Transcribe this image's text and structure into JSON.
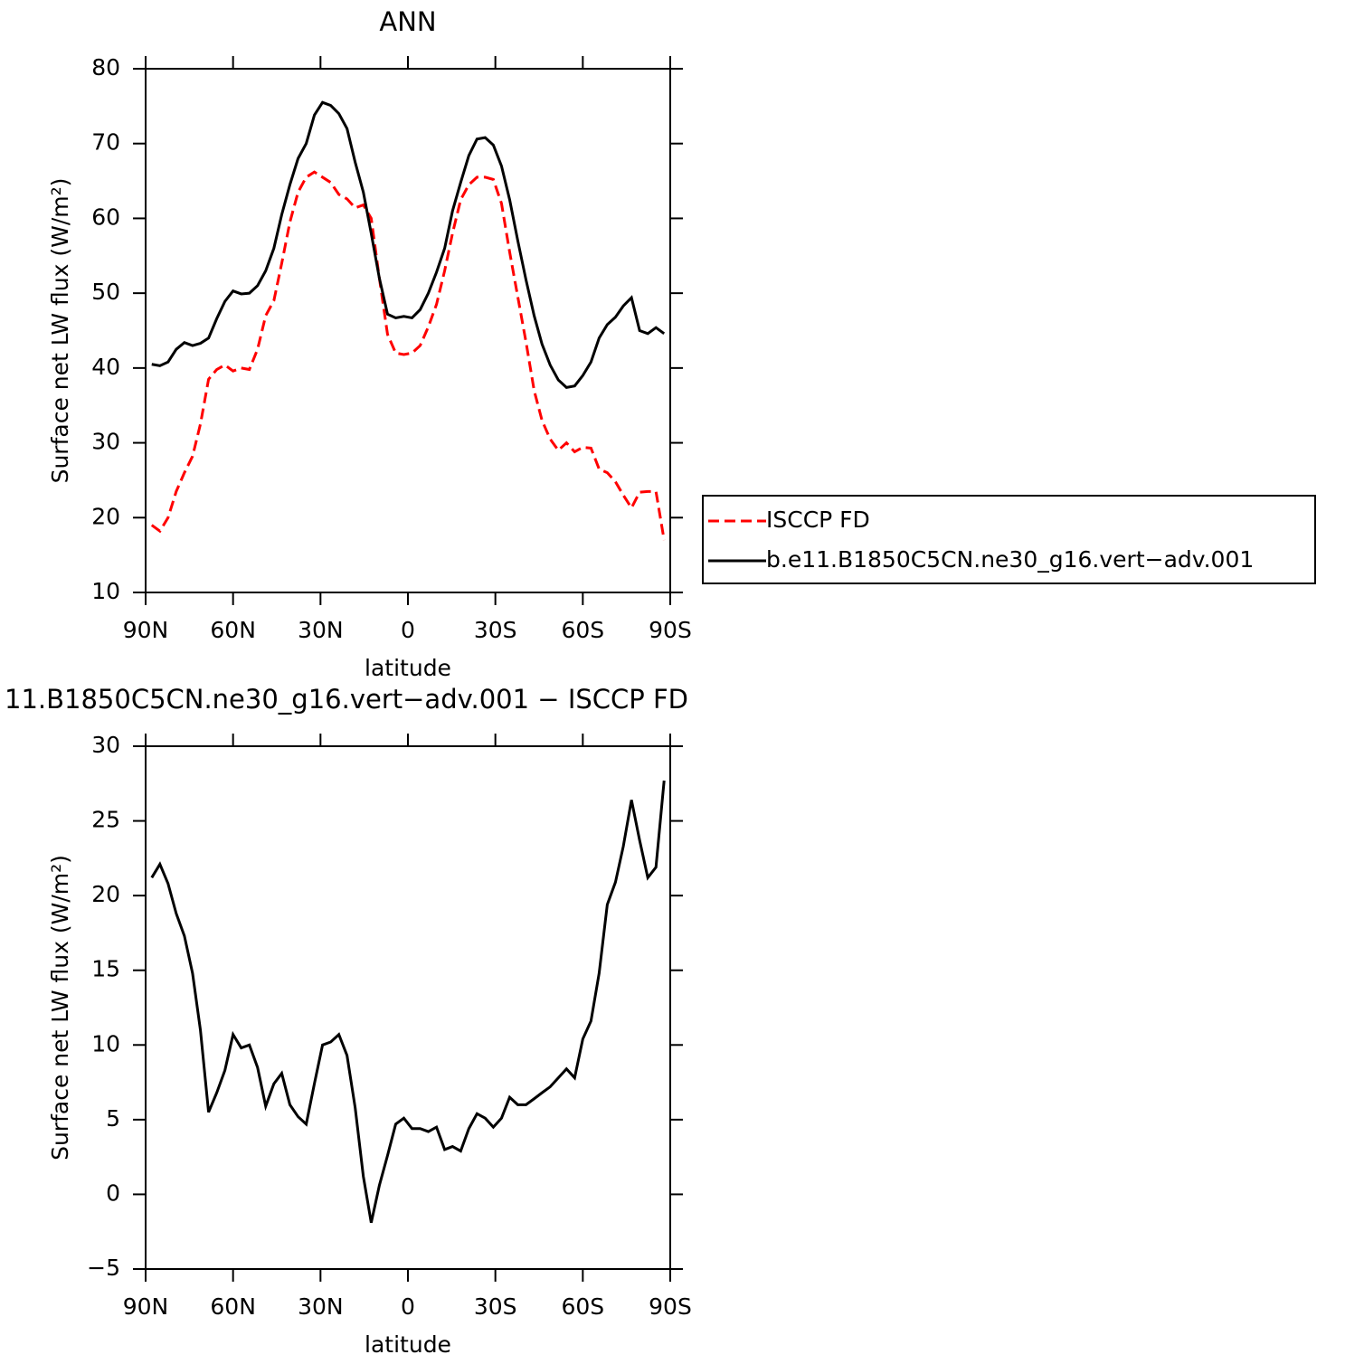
{
  "chart_data": [
    {
      "type": "line",
      "title": "ANN",
      "xlabel": "latitude",
      "ylabel": "Surface net LW flux (W/m²)",
      "xlim": [
        90,
        -90
      ],
      "xticks": [
        {
          "value": 90,
          "label": "90N"
        },
        {
          "value": 60,
          "label": "60N"
        },
        {
          "value": 30,
          "label": "30N"
        },
        0,
        {
          "value": -30,
          "label": "30S"
        },
        {
          "value": -60,
          "label": "60S"
        },
        {
          "value": -90,
          "label": "90S"
        }
      ],
      "ylim": [
        10,
        80
      ],
      "yticks": [
        10,
        20,
        30,
        40,
        50,
        60,
        70,
        80
      ],
      "legend": "right",
      "x": [
        87.9,
        85.1,
        82.3,
        79.5,
        76.7,
        73.9,
        71.2,
        68.4,
        65.6,
        62.8,
        60.0,
        57.2,
        54.4,
        51.6,
        48.8,
        46.0,
        43.3,
        40.5,
        37.7,
        34.9,
        32.1,
        29.3,
        26.5,
        23.7,
        20.9,
        18.1,
        15.3,
        12.6,
        9.8,
        7.0,
        4.2,
        1.4,
        -1.4,
        -4.2,
        -7.0,
        -9.8,
        -12.6,
        -15.3,
        -18.1,
        -20.9,
        -23.7,
        -26.5,
        -29.3,
        -32.1,
        -34.9,
        -37.7,
        -40.5,
        -43.3,
        -46.0,
        -48.8,
        -51.6,
        -54.4,
        -57.2,
        -60.0,
        -62.8,
        -65.6,
        -68.4,
        -71.2,
        -73.9,
        -76.7,
        -79.5,
        -82.3,
        -85.1,
        -87.9
      ],
      "series": [
        {
          "name": "ISCCP FD",
          "color": "#ff0000",
          "dashed": true,
          "values": [
            19.0,
            18.2,
            20.0,
            23.5,
            26.0,
            28.2,
            32.5,
            38.5,
            39.8,
            40.4,
            39.6,
            40.0,
            39.8,
            42.5,
            47.0,
            49.0,
            54.0,
            59.5,
            63.5,
            65.5,
            66.2,
            65.5,
            64.8,
            63.2,
            62.6,
            61.4,
            61.8,
            60.0,
            52.0,
            44.5,
            42.0,
            41.8,
            42.0,
            43.0,
            45.5,
            48.5,
            53.0,
            58.0,
            62.5,
            64.5,
            65.5,
            65.5,
            65.2,
            62.0,
            55.5,
            49.5,
            43.5,
            37.0,
            33.0,
            30.5,
            29.0,
            30.0,
            28.8,
            29.4,
            29.3,
            26.5,
            26.0,
            24.8,
            23.0,
            21.3,
            23.4,
            23.5,
            23.5,
            17.0
          ]
        },
        {
          "name": "b.e11.B1850C5CN.ne30_g16.vert−adv.001",
          "color": "#000000",
          "dashed": false,
          "values": [
            40.5,
            40.3,
            40.8,
            42.5,
            43.4,
            43.0,
            43.3,
            44.0,
            46.6,
            48.9,
            50.3,
            49.9,
            50.0,
            51.0,
            53.0,
            56.0,
            60.5,
            64.5,
            68.0,
            70.0,
            73.8,
            75.5,
            75.1,
            74.0,
            72.0,
            67.5,
            63.5,
            58.0,
            52.0,
            47.2,
            46.7,
            46.9,
            46.7,
            47.8,
            50.0,
            52.8,
            56.0,
            61.0,
            64.8,
            68.4,
            70.6,
            70.8,
            69.8,
            67.0,
            62.5,
            57.0,
            51.8,
            47.0,
            43.2,
            40.4,
            38.4,
            37.4,
            37.6,
            39.0,
            40.8,
            44.0,
            45.8,
            46.8,
            48.3,
            49.4,
            45.0,
            44.6,
            45.4,
            44.6
          ]
        }
      ]
    },
    {
      "type": "line",
      "title": "11.B1850C5CN.ne30_g16.vert−adv.001 − ISCCP FD",
      "xlabel": "latitude",
      "ylabel": "Surface net LW flux (W/m²)",
      "xlim": [
        90,
        -90
      ],
      "xticks": [
        {
          "value": 90,
          "label": "90N"
        },
        {
          "value": 60,
          "label": "60N"
        },
        {
          "value": 30,
          "label": "30N"
        },
        0,
        {
          "value": -30,
          "label": "30S"
        },
        {
          "value": -60,
          "label": "60S"
        },
        {
          "value": -90,
          "label": "90S"
        }
      ],
      "ylim": [
        -5,
        30
      ],
      "yticks": [
        {
          "value": -5,
          "label": "−5"
        },
        0,
        5,
        10,
        15,
        20,
        25,
        30
      ],
      "x": [
        87.9,
        85.1,
        82.3,
        79.5,
        76.7,
        73.9,
        71.2,
        68.4,
        65.6,
        62.8,
        60.0,
        57.2,
        54.4,
        51.6,
        48.8,
        46.0,
        43.3,
        40.5,
        37.7,
        34.9,
        32.1,
        29.3,
        26.5,
        23.7,
        20.9,
        18.1,
        15.3,
        12.6,
        9.8,
        7.0,
        4.2,
        1.4,
        -1.4,
        -4.2,
        -7.0,
        -9.8,
        -12.6,
        -15.3,
        -18.1,
        -20.9,
        -23.7,
        -26.5,
        -29.3,
        -32.1,
        -34.9,
        -37.7,
        -40.5,
        -43.3,
        -46.0,
        -48.8,
        -51.6,
        -54.4,
        -57.2,
        -60.0,
        -62.8,
        -65.6,
        -68.4,
        -71.2,
        -73.9,
        -76.7,
        -79.5,
        -82.3,
        -85.1,
        -87.9
      ],
      "color": "#000000",
      "values": [
        21.2,
        22.1,
        20.8,
        18.8,
        17.3,
        14.8,
        11.0,
        5.5,
        6.8,
        8.3,
        10.7,
        9.8,
        10.0,
        8.5,
        5.9,
        7.4,
        8.1,
        6.0,
        5.2,
        4.7,
        7.4,
        10.0,
        10.2,
        10.7,
        9.3,
        5.8,
        1.2,
        -1.9,
        0.6,
        2.6,
        4.7,
        5.1,
        4.4,
        4.4,
        4.2,
        4.5,
        3.0,
        3.2,
        2.9,
        4.4,
        5.4,
        5.1,
        4.5,
        5.1,
        6.5,
        6.0,
        6.0,
        6.4,
        6.8,
        7.2,
        7.8,
        8.4,
        7.8,
        10.4,
        11.6,
        14.8,
        19.4,
        20.9,
        23.3,
        26.4,
        23.7,
        21.2,
        21.9,
        27.7
      ]
    }
  ]
}
